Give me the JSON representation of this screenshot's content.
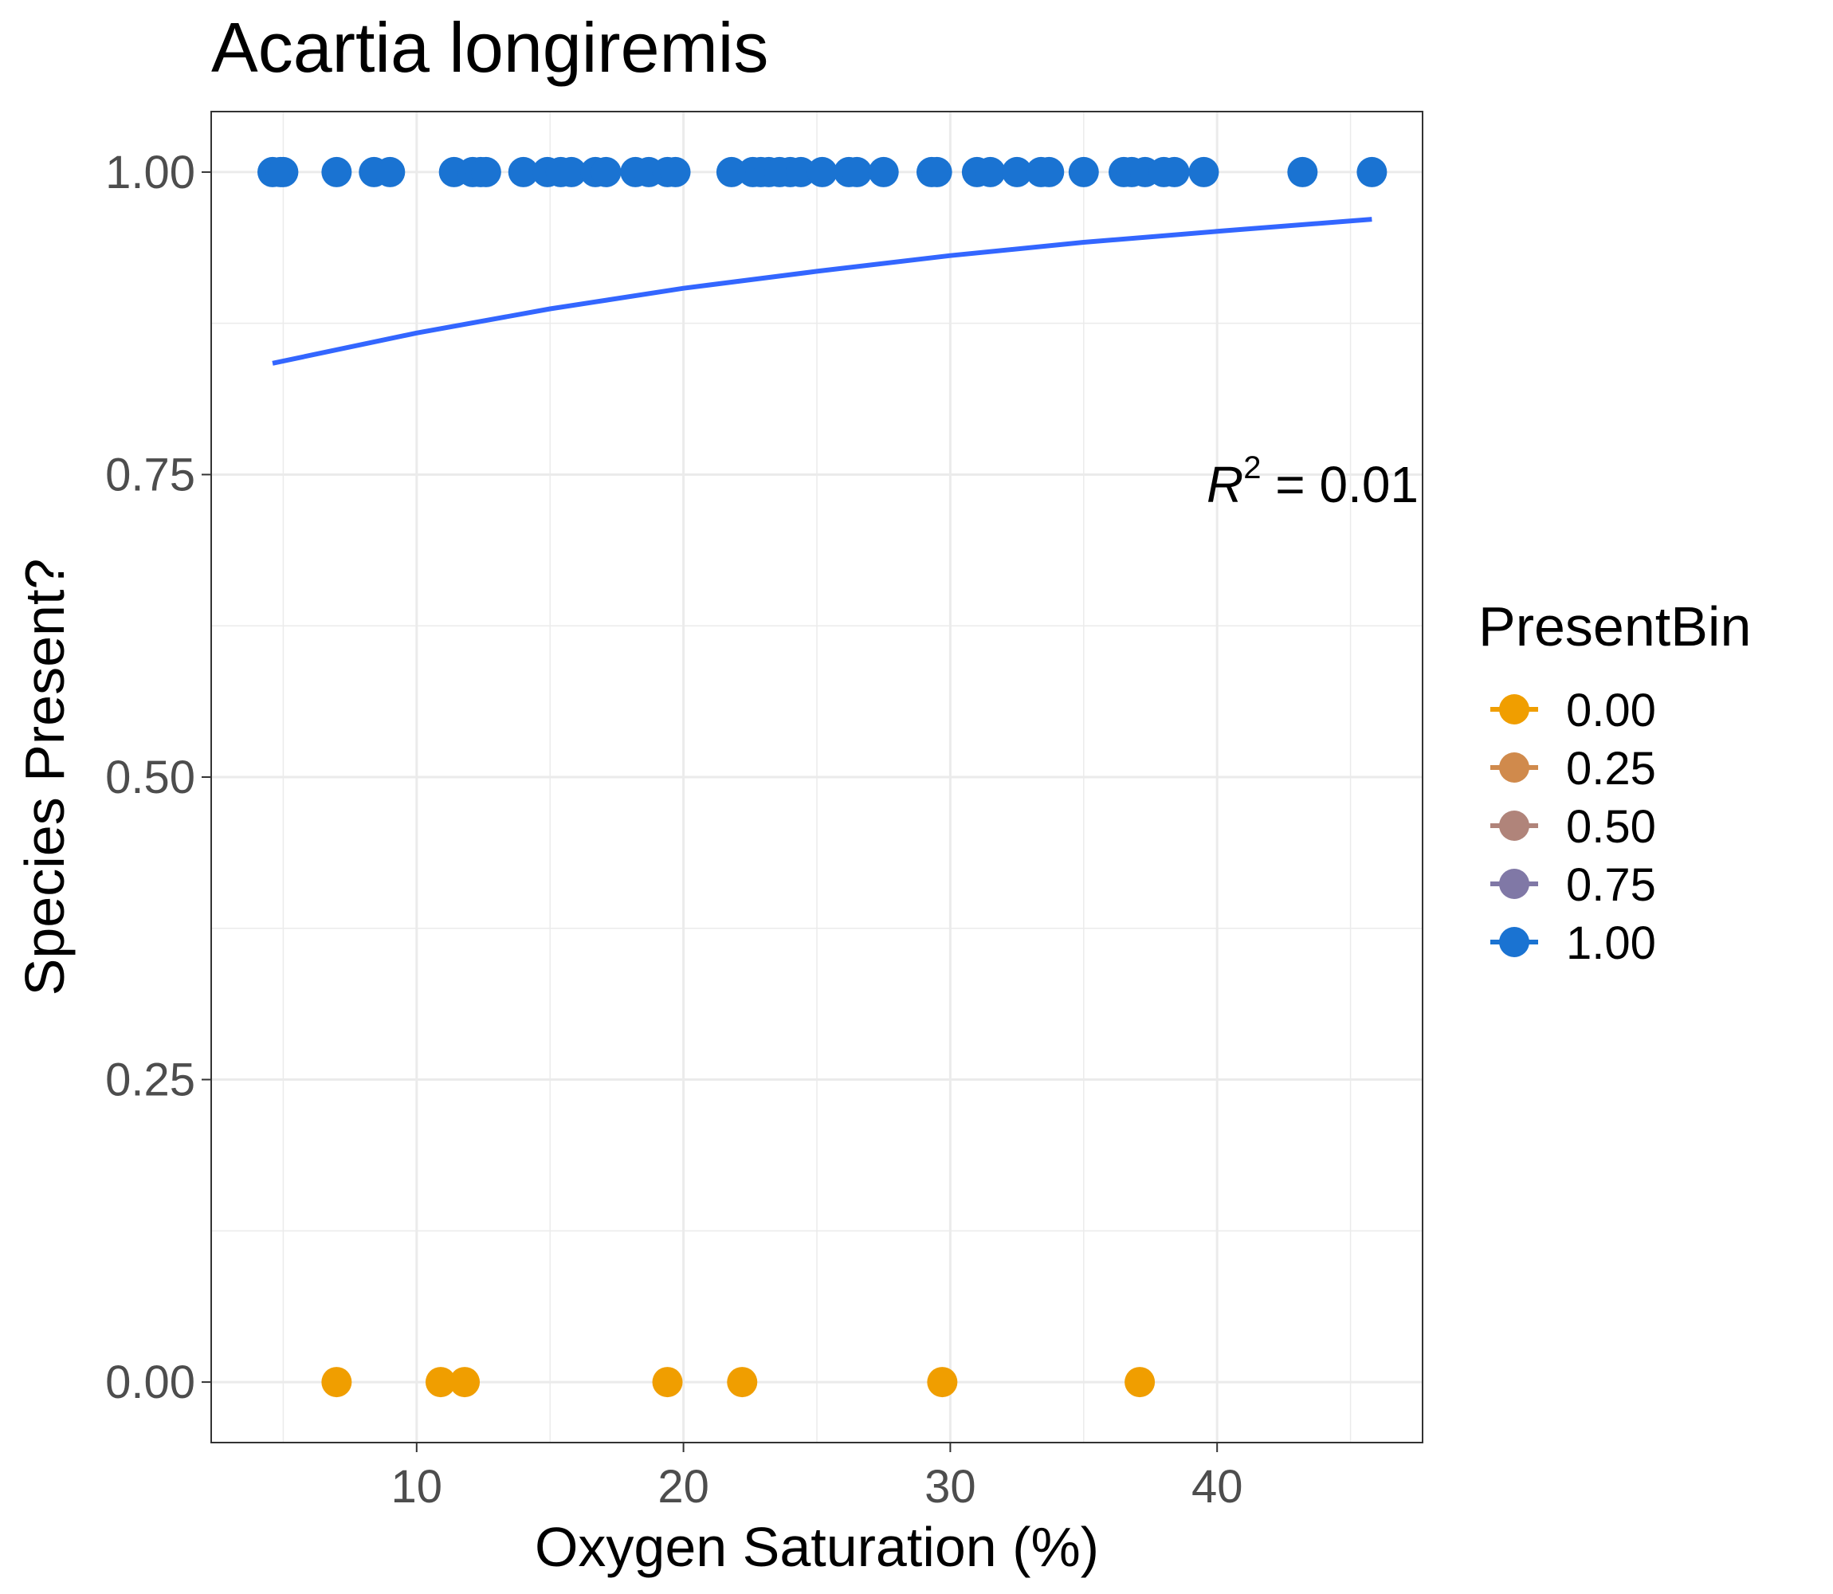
{
  "chart_data": {
    "type": "scatter",
    "title": "Acartia longiremis",
    "xlabel": "Oxygen Saturation (%)",
    "ylabel": "Species Present?",
    "xlim": [
      2.3,
      47.7
    ],
    "ylim": [
      -0.05,
      1.05
    ],
    "x_ticks": [
      10,
      20,
      30,
      40
    ],
    "x_tick_labels": [
      "10",
      "20",
      "30",
      "40"
    ],
    "y_ticks": [
      0,
      0.25,
      0.5,
      0.75,
      1.0
    ],
    "y_tick_labels": [
      "0.00",
      "0.25",
      "0.50",
      "0.75",
      "1.00"
    ],
    "grid": true,
    "legend": {
      "title": "PresentBin",
      "position": "right",
      "items": [
        {
          "label": "0.00",
          "color": "#F09E00"
        },
        {
          "label": "0.25",
          "color": "#D08A4C"
        },
        {
          "label": "0.50",
          "color": "#B0847A"
        },
        {
          "label": "0.75",
          "color": "#8078A6"
        },
        {
          "label": "1.00",
          "color": "#1A73D2"
        }
      ]
    },
    "series": [
      {
        "name": "1.00",
        "color": "#1A73D2",
        "y": 1.0,
        "x": [
          4.6,
          4.9,
          5.0,
          7.0,
          8.4,
          9.0,
          11.4,
          12.1,
          12.4,
          12.6,
          14.0,
          14.9,
          15.4,
          15.8,
          16.7,
          17.1,
          18.2,
          18.7,
          19.4,
          19.7,
          21.8,
          22.6,
          22.9,
          23.2,
          23.6,
          24.0,
          24.4,
          25.2,
          26.2,
          26.5,
          27.5,
          29.3,
          29.5,
          31.0,
          31.5,
          32.5,
          33.4,
          33.7,
          35.0,
          36.5,
          36.8,
          37.3,
          38.0,
          38.4,
          39.5,
          43.2,
          45.8
        ],
        "values": [
          1,
          1,
          1,
          1,
          1,
          1,
          1,
          1,
          1,
          1,
          1,
          1,
          1,
          1,
          1,
          1,
          1,
          1,
          1,
          1,
          1,
          1,
          1,
          1,
          1,
          1,
          1,
          1,
          1,
          1,
          1,
          1,
          1,
          1,
          1,
          1,
          1,
          1,
          1,
          1,
          1,
          1,
          1,
          1,
          1,
          1,
          1
        ]
      },
      {
        "name": "0.00",
        "color": "#F09E00",
        "y": 0.0,
        "x": [
          7.0,
          10.9,
          11.8,
          19.4,
          22.2,
          29.7,
          37.1
        ],
        "values": [
          0,
          0,
          0,
          0,
          0,
          0,
          0
        ]
      }
    ],
    "fit_line": {
      "color": "#3366FF",
      "x": [
        4.6,
        10,
        15,
        20,
        25,
        30,
        35,
        40,
        45.8
      ],
      "y": [
        0.842,
        0.867,
        0.887,
        0.904,
        0.918,
        0.931,
        0.942,
        0.951,
        0.961
      ]
    },
    "annotation": {
      "symbol": "R",
      "superscript": "2",
      "text": " = 0.01"
    }
  }
}
